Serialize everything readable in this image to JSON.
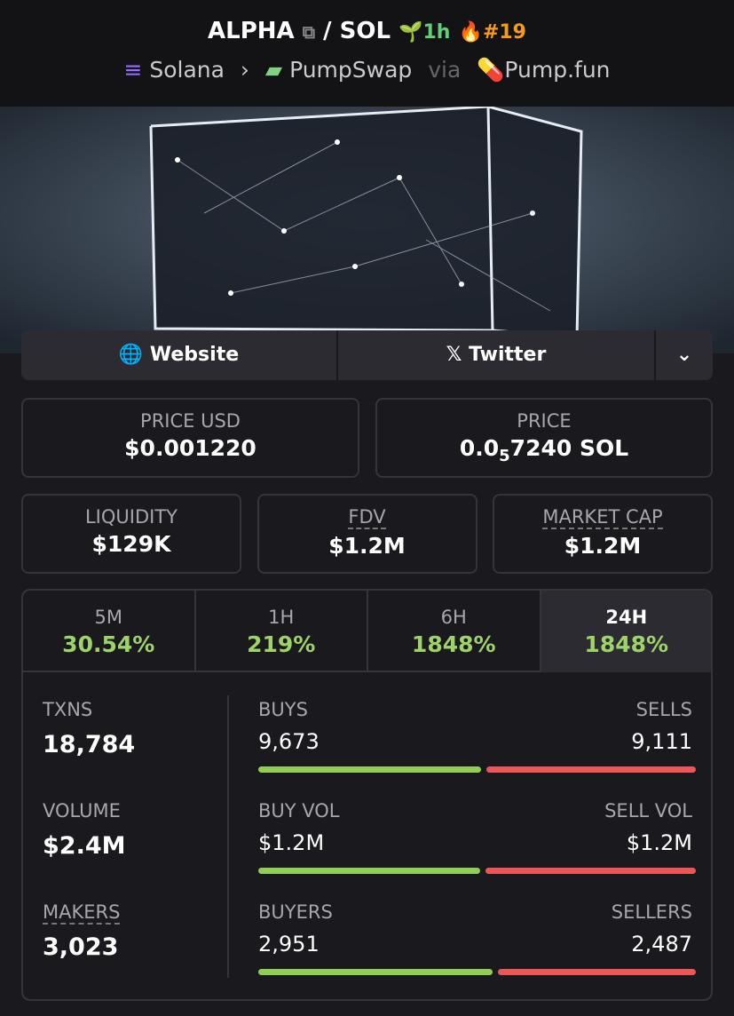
{
  "header": {
    "base": "ALPHA",
    "separator": "/",
    "quote": "SOL",
    "age": "1h",
    "rank": "#19",
    "chain": "Solana",
    "dex": "PumpSwap",
    "via": "via",
    "launchpad": "Pump.fun"
  },
  "links": {
    "website": "Website",
    "twitter": "Twitter"
  },
  "price_usd": {
    "label": "PRICE USD",
    "value": "$0.001220"
  },
  "price": {
    "label": "PRICE",
    "lead": "0.0",
    "zeros": "5",
    "rest": "7240 SOL"
  },
  "stats": [
    {
      "label": "LIQUIDITY",
      "value": "$129K"
    },
    {
      "label": "FDV",
      "value": "$1.2M"
    },
    {
      "label": "MARKET CAP",
      "value": "$1.2M"
    }
  ],
  "periods": [
    {
      "label": "5M",
      "change": "30.54%"
    },
    {
      "label": "1H",
      "change": "219%"
    },
    {
      "label": "6H",
      "change": "1848%"
    },
    {
      "label": "24H",
      "change": "1848%"
    }
  ],
  "selected_period": 3,
  "totals": [
    {
      "label": "TXNS",
      "value": "18,784"
    },
    {
      "label": "VOLUME",
      "value": "$2.4M"
    },
    {
      "label": "MAKERS",
      "value": "3,023"
    }
  ],
  "splits": [
    {
      "left_label": "BUYS",
      "right_label": "SELLS",
      "left": {
        "value": 9673,
        "label": "9,673"
      },
      "right": {
        "value": 9111,
        "label": "9,111"
      }
    },
    {
      "left_label": "BUY VOL",
      "right_label": "SELL VOL",
      "left": {
        "value": 1220000,
        "label": "$1.2M"
      },
      "right": {
        "value": 1160000,
        "label": "$1.2M"
      }
    },
    {
      "left_label": "BUYERS",
      "right_label": "SELLERS",
      "left": {
        "value": 2951,
        "label": "2,951"
      },
      "right": {
        "value": 2487,
        "label": "2,487"
      }
    }
  ]
}
